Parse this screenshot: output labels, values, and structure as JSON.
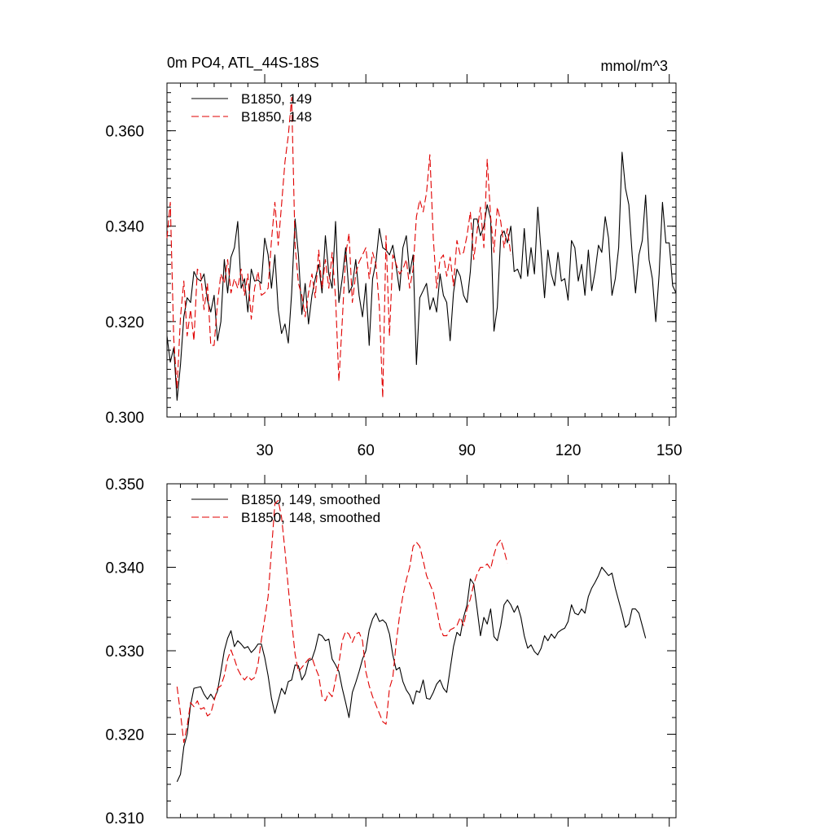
{
  "header": {
    "left_title": "0m PO4, ATL_44S-18S",
    "right_title": "mmol/m^3"
  },
  "colors": {
    "series_149": "#000000",
    "series_148": "#e00000"
  },
  "chart_data": [
    {
      "type": "line",
      "xlim": [
        1,
        152
      ],
      "ylim": [
        0.3,
        0.37
      ],
      "x_ticks": [
        30,
        60,
        90,
        120,
        150
      ],
      "x_tick_labels": [
        "30",
        "60",
        "90",
        "120",
        "150"
      ],
      "y_ticks": [
        0.3,
        0.32,
        0.34,
        0.36
      ],
      "y_tick_labels": [
        "0.300",
        "0.320",
        "0.340",
        "0.360"
      ],
      "legend_position": "top-left",
      "series": [
        {
          "name": "B1850, 149",
          "style": "solid",
          "x_start": 1,
          "values": [
            0.317,
            0.3115,
            0.3145,
            0.3035,
            0.311,
            0.321,
            0.325,
            0.324,
            0.3305,
            0.329,
            0.3285,
            0.33,
            0.3245,
            0.322,
            0.3255,
            0.316,
            0.32,
            0.333,
            0.326,
            0.3335,
            0.3355,
            0.341,
            0.327,
            0.329,
            0.322,
            0.331,
            0.3285,
            0.3287,
            0.328,
            0.3375,
            0.334,
            0.327,
            0.334,
            0.3225,
            0.3175,
            0.3195,
            0.3155,
            0.326,
            0.3415,
            0.334,
            0.3215,
            0.328,
            0.3195,
            0.3255,
            0.329,
            0.332,
            0.326,
            0.338,
            0.33,
            0.327,
            0.341,
            0.324,
            0.329,
            0.3355,
            0.326,
            0.3275,
            0.333,
            0.3255,
            0.321,
            0.328,
            0.315,
            0.329,
            0.3325,
            0.3395,
            0.3355,
            0.335,
            0.334,
            0.336,
            0.3315,
            0.3265,
            0.3355,
            0.338,
            0.33,
            0.334,
            0.311,
            0.325,
            0.3265,
            0.328,
            0.3225,
            0.325,
            0.322,
            0.33,
            0.3255,
            0.324,
            0.316,
            0.326,
            0.331,
            0.3295,
            0.3255,
            0.324,
            0.3305,
            0.3415,
            0.3415,
            0.338,
            0.34,
            0.3445,
            0.3415,
            0.318,
            0.323,
            0.338,
            0.339,
            0.3365,
            0.34,
            0.3305,
            0.331,
            0.329,
            0.3395,
            0.3295,
            0.3355,
            0.33,
            0.344,
            0.3345,
            0.325,
            0.335,
            0.33,
            0.3275,
            0.3345,
            0.3285,
            0.329,
            0.3245,
            0.337,
            0.3355,
            0.3285,
            0.332,
            0.3255,
            0.335,
            0.3265,
            0.3305,
            0.336,
            0.3345,
            0.342,
            0.3375,
            0.3255,
            0.329,
            0.3355,
            0.3555,
            0.348,
            0.3445,
            0.334,
            0.326,
            0.334,
            0.337,
            0.3465,
            0.333,
            0.329,
            0.32,
            0.33,
            0.345,
            0.3365,
            0.3365,
            0.3275,
            0.326
          ]
        },
        {
          "name": "B1850, 148",
          "style": "dashed",
          "x_start": 1,
          "values": [
            0.3375,
            0.345,
            0.3165,
            0.306,
            0.321,
            0.3285,
            0.317,
            0.3225,
            0.316,
            0.331,
            0.33,
            0.3225,
            0.328,
            0.315,
            0.315,
            0.324,
            0.33,
            0.328,
            0.333,
            0.326,
            0.329,
            0.327,
            0.331,
            0.3255,
            0.33,
            0.3205,
            0.327,
            0.3305,
            0.3255,
            0.326,
            0.327,
            0.337,
            0.345,
            0.336,
            0.3445,
            0.3535,
            0.359,
            0.367,
            0.336,
            0.328,
            0.3255,
            0.321,
            0.326,
            0.33,
            0.325,
            0.335,
            0.327,
            0.333,
            0.327,
            0.3345,
            0.325,
            0.3075,
            0.32,
            0.334,
            0.3385,
            0.324,
            0.33,
            0.3325,
            0.334,
            0.3355,
            0.329,
            0.3345,
            0.332,
            0.323,
            0.304,
            0.338,
            0.317,
            0.334,
            0.332,
            0.33,
            0.331,
            0.333,
            0.327,
            0.331,
            0.342,
            0.3455,
            0.343,
            0.347,
            0.355,
            0.3375,
            0.327,
            0.333,
            0.334,
            0.3295,
            0.3335,
            0.3275,
            0.337,
            0.334,
            0.3345,
            0.338,
            0.343,
            0.333,
            0.339,
            0.344,
            0.3355,
            0.354,
            0.342,
            0.3345,
            0.344,
            0.341,
            0.3355,
            0.3395,
            0.334
          ]
        }
      ]
    },
    {
      "type": "line",
      "xlim": [
        1,
        152
      ],
      "ylim": [
        0.31,
        0.35
      ],
      "x_ticks": [
        30,
        60,
        90,
        120,
        150
      ],
      "y_ticks": [
        0.31,
        0.32,
        0.33,
        0.34,
        0.35
      ],
      "y_tick_labels": [
        "0.310",
        "0.320",
        "0.330",
        "0.340",
        "0.350"
      ],
      "legend_position": "top-left",
      "series": [
        {
          "name": "B1850, 149, smoothed",
          "style": "solid",
          "x_start": 4,
          "values": [
            0.3143,
            0.3152,
            0.3185,
            0.32,
            0.3235,
            0.3255,
            0.3256,
            0.3257,
            0.3248,
            0.3242,
            0.3248,
            0.3242,
            0.3252,
            0.3275,
            0.33,
            0.3315,
            0.3324,
            0.3305,
            0.3312,
            0.3308,
            0.3303,
            0.3305,
            0.3298,
            0.3302,
            0.3308,
            0.3308,
            0.3292,
            0.327,
            0.3243,
            0.3225,
            0.324,
            0.3255,
            0.3248,
            0.3263,
            0.3265,
            0.3283,
            0.3282,
            0.3265,
            0.3272,
            0.3288,
            0.329,
            0.3302,
            0.332,
            0.3318,
            0.3312,
            0.3314,
            0.329,
            0.3283,
            0.3275,
            0.3255,
            0.3238,
            0.322,
            0.325,
            0.3262,
            0.3275,
            0.329,
            0.33,
            0.3325,
            0.3338,
            0.3345,
            0.3335,
            0.3337,
            0.3333,
            0.332,
            0.3295,
            0.3277,
            0.328,
            0.3263,
            0.3253,
            0.3247,
            0.3236,
            0.3252,
            0.325,
            0.3265,
            0.3243,
            0.3242,
            0.325,
            0.326,
            0.3265,
            0.3255,
            0.325,
            0.3278,
            0.3305,
            0.3322,
            0.3318,
            0.334,
            0.3355,
            0.3386,
            0.338,
            0.335,
            0.3318,
            0.334,
            0.3332,
            0.335,
            0.3317,
            0.3312,
            0.333,
            0.3355,
            0.3361,
            0.3355,
            0.3346,
            0.3354,
            0.334,
            0.3318,
            0.3303,
            0.3307,
            0.3299,
            0.3295,
            0.3303,
            0.3318,
            0.3312,
            0.332,
            0.3315,
            0.3322,
            0.3325,
            0.3327,
            0.3335,
            0.3355,
            0.3345,
            0.3343,
            0.335,
            0.3345,
            0.3365,
            0.3375,
            0.3382,
            0.339,
            0.34,
            0.3395,
            0.339,
            0.3393,
            0.3375,
            0.336,
            0.3345,
            0.3328,
            0.3332,
            0.335,
            0.335,
            0.3345,
            0.333,
            0.3315
          ]
        },
        {
          "name": "B1850, 148, smoothed",
          "style": "dashed",
          "x_start": 4,
          "values": [
            0.3257,
            0.3225,
            0.319,
            0.321,
            0.3238,
            0.3233,
            0.324,
            0.323,
            0.3232,
            0.3222,
            0.3225,
            0.324,
            0.3255,
            0.3258,
            0.327,
            0.329,
            0.3301,
            0.329,
            0.3278,
            0.327,
            0.3265,
            0.327,
            0.3265,
            0.3268,
            0.3284,
            0.3313,
            0.3338,
            0.3365,
            0.342,
            0.3476,
            0.348,
            0.346,
            0.342,
            0.3375,
            0.3335,
            0.3296,
            0.3275,
            0.328,
            0.3285,
            0.329,
            0.3292,
            0.328,
            0.327,
            0.3245,
            0.324,
            0.325,
            0.3245,
            0.3265,
            0.3285,
            0.3312,
            0.3323,
            0.332,
            0.331,
            0.332,
            0.3322,
            0.3312,
            0.3275,
            0.3258,
            0.3245,
            0.3235,
            0.3225,
            0.3215,
            0.3212,
            0.3255,
            0.3268,
            0.331,
            0.3342,
            0.3366,
            0.3385,
            0.34,
            0.3425,
            0.343,
            0.3425,
            0.3408,
            0.339,
            0.338,
            0.337,
            0.335,
            0.3328,
            0.3318,
            0.3318,
            0.3325,
            0.3327,
            0.333,
            0.334,
            0.333,
            0.335,
            0.3362,
            0.338,
            0.3392,
            0.34,
            0.34,
            0.3404,
            0.3398,
            0.3415,
            0.3428,
            0.3433,
            0.342,
            0.3405
          ]
        }
      ]
    }
  ]
}
